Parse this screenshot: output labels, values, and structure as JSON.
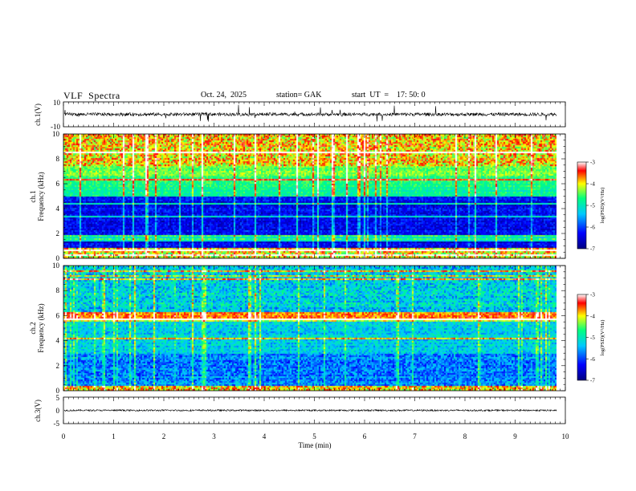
{
  "header": {
    "title": "VLF  Spectra",
    "date": "Oct. 24,  2025",
    "station": "station= GAK",
    "start_ut": "start  UT  =    17: 50: 0"
  },
  "chart_data": [
    {
      "type": "line",
      "panel": "ch1-waveform",
      "ylabel": "ch.1(V)",
      "ylim": [
        -10,
        10
      ],
      "yticks": [
        "10",
        "-10"
      ],
      "xlim": [
        0,
        10
      ]
    },
    {
      "type": "heatmap",
      "panel": "ch1-spectrogram",
      "ylabel_top": "ch.1",
      "ylabel": "Frequency  (kHz)",
      "ylim": [
        0,
        10
      ],
      "yticks": [
        "0",
        "2",
        "4",
        "6",
        "8",
        "10"
      ],
      "xlim": [
        0,
        10
      ],
      "colorbar": {
        "label": "log(PSD)(V²/Hz)",
        "range": [
          -7,
          -3
        ],
        "ticks": [
          "-3",
          "-4",
          "-5",
          "-6",
          "-7"
        ]
      }
    },
    {
      "type": "heatmap",
      "panel": "ch2-spectrogram",
      "ylabel_top": "ch.2",
      "ylabel": "Frequency  (kHz)",
      "ylim": [
        0,
        10
      ],
      "yticks": [
        "0",
        "2",
        "4",
        "6",
        "8",
        "10"
      ],
      "xlim": [
        0,
        10
      ],
      "colorbar": {
        "label": "log(PSD)(V²/Hz)",
        "range": [
          -7,
          -3
        ],
        "ticks": [
          "-3",
          "-4",
          "-5",
          "-6",
          "-7"
        ]
      }
    },
    {
      "type": "line",
      "panel": "ch3-waveform",
      "ylabel": "ch.3(V)",
      "ylim": [
        -5,
        5
      ],
      "yticks": [
        "5",
        "0",
        "-5"
      ],
      "xlabel": "Time  (min)",
      "xlim": [
        0,
        10
      ],
      "xticks": [
        "0",
        "1",
        "2",
        "3",
        "4",
        "5",
        "6",
        "7",
        "8",
        "9",
        "10"
      ]
    }
  ],
  "colors": {
    "axis": "#000000",
    "colormap": [
      "#000080",
      "#0000ff",
      "#00c8ff",
      "#00ff80",
      "#ffff00",
      "#ff0000",
      "#ffffff"
    ]
  }
}
